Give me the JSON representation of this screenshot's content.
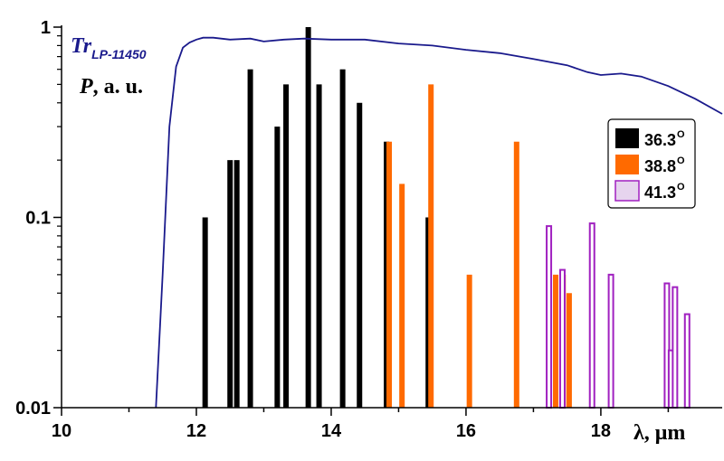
{
  "chart_data": {
    "type": "bar",
    "xlabel": "λ, μm",
    "ylabel_symbol": "P",
    "ylabel_rest": ", a. u.",
    "xlim": [
      10,
      19.8
    ],
    "ylim": [
      0.01,
      1
    ],
    "y_scale": "log",
    "x_ticks": [
      10,
      12,
      14,
      16,
      18
    ],
    "y_ticks": [
      {
        "value": 0.01,
        "label": "0.01"
      },
      {
        "value": 0.1,
        "label": "0.1"
      },
      {
        "value": 1,
        "label": "1"
      }
    ],
    "legend_position": "right",
    "series": [
      {
        "name": "36.3",
        "superscript": "O",
        "color": "#000000",
        "style": "filled",
        "x": [
          12.13,
          12.5,
          12.6,
          12.8,
          13.2,
          13.33,
          13.66,
          13.82,
          14.17,
          14.42,
          14.82,
          15.44
        ],
        "values": [
          0.1,
          0.2,
          0.2,
          0.6,
          0.3,
          0.5,
          1.0,
          0.5,
          0.6,
          0.4,
          0.25,
          0.1
        ]
      },
      {
        "name": "38.8",
        "superscript": "O",
        "color": "#ff6a00",
        "style": "filled",
        "x": [
          14.86,
          15.05,
          15.48,
          16.05,
          16.75,
          17.33,
          17.44,
          17.53
        ],
        "values": [
          0.25,
          0.15,
          0.5,
          0.05,
          0.25,
          0.05,
          0.05,
          0.04
        ]
      },
      {
        "name": "41.3",
        "superscript": "O",
        "color": "#a020c0",
        "style": "outline",
        "x": [
          17.23,
          17.43,
          17.87,
          18.15,
          18.98,
          19.04,
          19.1,
          19.28
        ],
        "values": [
          0.09,
          0.053,
          0.093,
          0.05,
          0.045,
          0.02,
          0.043,
          0.031
        ]
      }
    ],
    "transmission": {
      "name": "Tr",
      "subscript": "LP-11450",
      "color": "#1a1a8c",
      "x": [
        11.4,
        11.5,
        11.6,
        11.7,
        11.8,
        11.9,
        12.0,
        12.1,
        12.25,
        12.5,
        12.8,
        13.0,
        13.3,
        13.6,
        14.0,
        14.5,
        15.0,
        15.5,
        16.0,
        16.5,
        17.0,
        17.5,
        17.8,
        18.0,
        18.3,
        18.6,
        19.0,
        19.4,
        19.8
      ],
      "values": [
        0.01,
        0.05,
        0.3,
        0.62,
        0.78,
        0.83,
        0.86,
        0.88,
        0.88,
        0.86,
        0.87,
        0.84,
        0.86,
        0.87,
        0.86,
        0.86,
        0.82,
        0.8,
        0.76,
        0.73,
        0.68,
        0.63,
        0.58,
        0.56,
        0.57,
        0.55,
        0.49,
        0.42,
        0.35
      ]
    }
  }
}
